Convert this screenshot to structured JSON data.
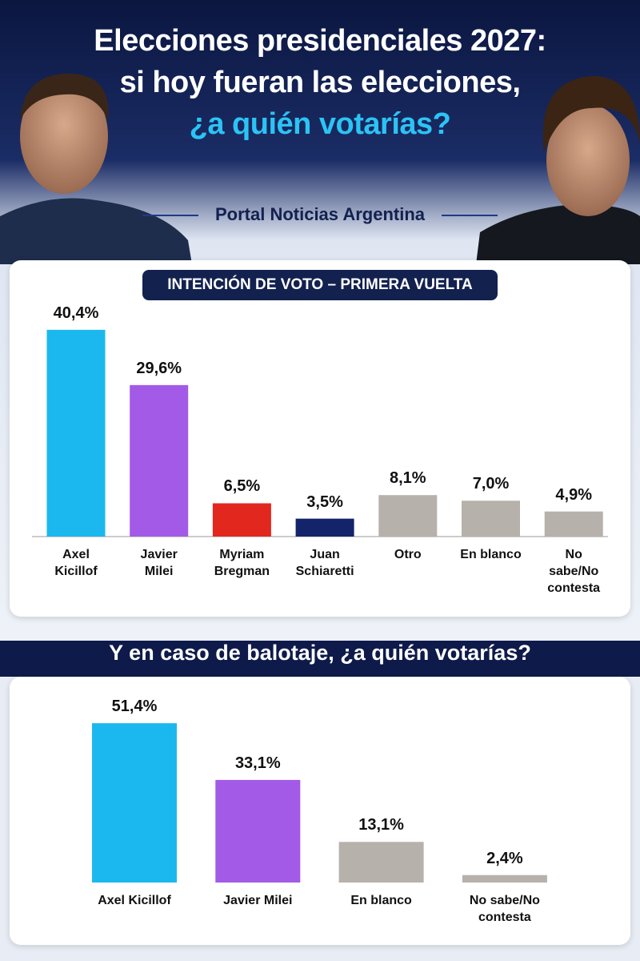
{
  "header": {
    "title_lines": [
      "Elecciones presidenciales 2027:",
      "si hoy fueran las elecciones,",
      "¿a quién votarías?"
    ],
    "source": "Portal Noticias Argentina"
  },
  "chart_data": [
    {
      "type": "bar",
      "title": "INTENCIÓN DE VOTO – PRIMERA VUELTA",
      "categories": [
        "Axel Kicillof",
        "Javier Milei",
        "Myriam Bregman",
        "Juan Schiaretti",
        "Otro",
        "En blanco",
        "No sabe/No contesta"
      ],
      "values": [
        40.4,
        29.6,
        6.5,
        3.5,
        8.1,
        7.0,
        4.9
      ],
      "value_labels": [
        "40,4%",
        "29,6%",
        "6,5%",
        "3,5%",
        "8,1%",
        "7,0%",
        "4,9%"
      ],
      "colors": [
        "#1bb8ef",
        "#a35ae6",
        "#e2271f",
        "#13246a",
        "#b6b1ab",
        "#b6b1ab",
        "#b6b1ab"
      ]
    },
    {
      "type": "bar",
      "title": "Y en caso de balotaje, ¿a quién votarías?",
      "categories": [
        "Axel Kicillof",
        "Javier Milei",
        "En blanco",
        "No sabe/No contesta"
      ],
      "values": [
        51.4,
        33.1,
        13.1,
        2.4
      ],
      "value_labels": [
        "51,4%",
        "33,1%",
        "13,1%",
        "2,4%"
      ],
      "colors": [
        "#1bb8ef",
        "#a35ae6",
        "#b6b1ab",
        "#b6b1ab"
      ]
    }
  ]
}
